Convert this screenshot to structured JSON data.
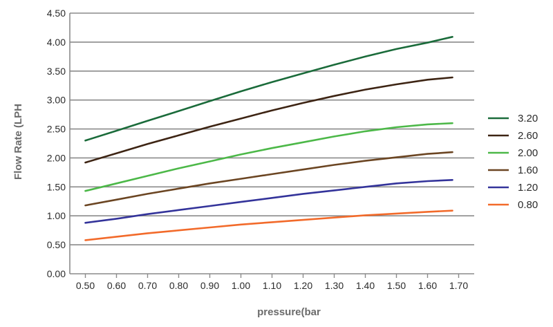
{
  "chart_data": {
    "type": "line",
    "title": "",
    "xlabel": "pressure(bar",
    "ylabel": "Flow Rate (LPH",
    "xlim": [
      0.45,
      1.75
    ],
    "ylim": [
      0,
      4.5
    ],
    "x_ticks": [
      "0.50",
      "0.60",
      "0.70",
      "0.80",
      "0.90",
      "1.00",
      "1.10",
      "1.20",
      "1.30",
      "1.40",
      "1.50",
      "1.60",
      "1.70"
    ],
    "y_ticks": [
      "0.00",
      "0.50",
      "1.00",
      "1.50",
      "2.00",
      "2.50",
      "3.00",
      "3.50",
      "4.00",
      "4.50"
    ],
    "grid": "horizontal",
    "legend_position": "right",
    "series": [
      {
        "name": "3.20",
        "color": "#1a6b3a",
        "x": [
          0.5,
          0.6,
          0.7,
          0.8,
          0.9,
          1.0,
          1.1,
          1.2,
          1.3,
          1.4,
          1.5,
          1.6,
          1.68
        ],
        "y": [
          2.3,
          2.47,
          2.64,
          2.81,
          2.98,
          3.15,
          3.31,
          3.46,
          3.61,
          3.75,
          3.88,
          3.99,
          4.09
        ]
      },
      {
        "name": "2.60",
        "color": "#3d2413",
        "x": [
          0.5,
          0.6,
          0.7,
          0.8,
          0.9,
          1.0,
          1.1,
          1.2,
          1.3,
          1.4,
          1.5,
          1.6,
          1.68
        ],
        "y": [
          1.92,
          2.08,
          2.24,
          2.39,
          2.54,
          2.68,
          2.82,
          2.95,
          3.07,
          3.18,
          3.27,
          3.35,
          3.39
        ]
      },
      {
        "name": "2.00",
        "color": "#4cb848",
        "x": [
          0.5,
          0.6,
          0.7,
          0.8,
          0.9,
          1.0,
          1.1,
          1.2,
          1.3,
          1.4,
          1.5,
          1.6,
          1.68
        ],
        "y": [
          1.43,
          1.56,
          1.69,
          1.82,
          1.94,
          2.06,
          2.17,
          2.27,
          2.37,
          2.46,
          2.53,
          2.58,
          2.6
        ]
      },
      {
        "name": "1.60",
        "color": "#6b4522",
        "x": [
          0.5,
          0.6,
          0.7,
          0.8,
          0.9,
          1.0,
          1.1,
          1.2,
          1.3,
          1.4,
          1.5,
          1.6,
          1.68
        ],
        "y": [
          1.18,
          1.28,
          1.38,
          1.47,
          1.56,
          1.64,
          1.72,
          1.8,
          1.88,
          1.95,
          2.01,
          2.07,
          2.1
        ]
      },
      {
        "name": "1.20",
        "color": "#33339a",
        "x": [
          0.5,
          0.6,
          0.7,
          0.8,
          0.9,
          1.0,
          1.1,
          1.2,
          1.3,
          1.4,
          1.5,
          1.6,
          1.68
        ],
        "y": [
          0.88,
          0.95,
          1.03,
          1.1,
          1.17,
          1.24,
          1.31,
          1.38,
          1.44,
          1.5,
          1.56,
          1.6,
          1.62
        ]
      },
      {
        "name": "0.80",
        "color": "#f26a2a",
        "x": [
          0.5,
          0.6,
          0.7,
          0.8,
          0.9,
          1.0,
          1.1,
          1.2,
          1.3,
          1.4,
          1.5,
          1.6,
          1.68
        ],
        "y": [
          0.58,
          0.64,
          0.7,
          0.75,
          0.8,
          0.85,
          0.89,
          0.93,
          0.97,
          1.01,
          1.04,
          1.07,
          1.09
        ]
      }
    ]
  }
}
